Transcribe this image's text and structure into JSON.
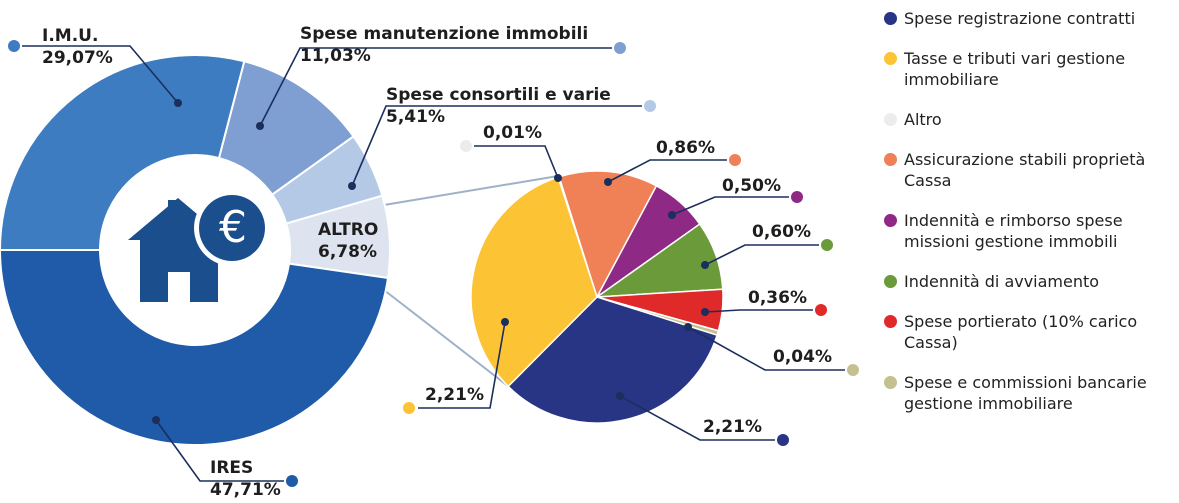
{
  "chart_data": [
    {
      "type": "donut",
      "categories": [
        "I.M.U.",
        "Spese manutenzione immobili",
        "Spese consortili e varie",
        "ALTRO",
        "IRES"
      ],
      "values": [
        29.07,
        11.03,
        5.41,
        6.78,
        47.71
      ],
      "value_labels": [
        "29,07%",
        "11,03%",
        "5,41%",
        "6,78%",
        "47,71%"
      ],
      "colors": [
        "#3d7cc0",
        "#7f9fd2",
        "#b3c9e6",
        "#dde4f0",
        "#1f5ba8"
      ]
    },
    {
      "type": "pie",
      "categories": [
        "Altro",
        "Assicurazione stabili proprietà Cassa",
        "Indennità e rimborso spese missioni gestione immobili",
        "Indennità di avviamento",
        "Spese portierato (10% carico Cassa)",
        "Spese e commissioni bancarie gestione immobiliare",
        "Spese registrazione contratti",
        "Tasse e tributi vari gestione immobiliare"
      ],
      "values": [
        0.01,
        0.86,
        0.5,
        0.6,
        0.36,
        0.04,
        2.21,
        2.21
      ],
      "value_labels": [
        "0,01%",
        "0,86%",
        "0,50%",
        "0,60%",
        "0,36%",
        "0,04%",
        "2,21%",
        "2,21%"
      ],
      "colors": [
        "#ececec",
        "#f08055",
        "#8e2a86",
        "#6a9a3a",
        "#e02a2a",
        "#c5c090",
        "#283584",
        "#fcc334"
      ],
      "legend_order": [
        6,
        7,
        0,
        1,
        2,
        3,
        4,
        5
      ]
    }
  ]
}
